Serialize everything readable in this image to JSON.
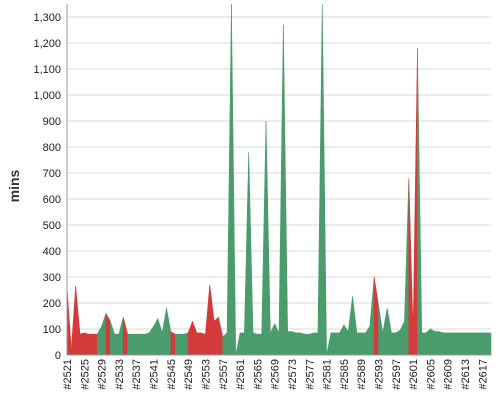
{
  "chart_data": {
    "type": "area",
    "title": "",
    "xlabel": "",
    "ylabel": "mins",
    "ylim": [
      0,
      1350
    ],
    "y_ticks": [
      0,
      100,
      200,
      300,
      400,
      500,
      600,
      700,
      800,
      900,
      1000,
      1100,
      1200,
      1300
    ],
    "y_tick_labels": [
      "0",
      "100",
      "200",
      "300",
      "400",
      "500",
      "600",
      "700",
      "800",
      "900",
      "1,000",
      "1,100",
      "1,200",
      "1,300"
    ],
    "x_tick_labels": [
      "#2521",
      "#2525",
      "#2529",
      "#2533",
      "#2537",
      "#2541",
      "#2545",
      "#2549",
      "#2553",
      "#2557",
      "#2561",
      "#2565",
      "#2569",
      "#2573",
      "#2577",
      "#2581",
      "#2585",
      "#2589",
      "#2593",
      "#2597",
      "#2601",
      "#2605",
      "#2609",
      "#2613",
      "#2617"
    ],
    "grid": true,
    "legend": "none",
    "colors": {
      "pass": "#4a9c6d",
      "fail": "#d43a3a"
    },
    "builds": [
      {
        "build": 2521,
        "value": 260,
        "status": "fail"
      },
      {
        "build": 2522,
        "value": 20,
        "status": "fail"
      },
      {
        "build": 2523,
        "value": 265,
        "status": "fail"
      },
      {
        "build": 2524,
        "value": 80,
        "status": "fail"
      },
      {
        "build": 2525,
        "value": 85,
        "status": "fail"
      },
      {
        "build": 2526,
        "value": 80,
        "status": "fail"
      },
      {
        "build": 2527,
        "value": 80,
        "status": "fail"
      },
      {
        "build": 2528,
        "value": 80,
        "status": "pass"
      },
      {
        "build": 2529,
        "value": 110,
        "status": "pass"
      },
      {
        "build": 2530,
        "value": 160,
        "status": "fail"
      },
      {
        "build": 2531,
        "value": 130,
        "status": "pass"
      },
      {
        "build": 2532,
        "value": 80,
        "status": "pass"
      },
      {
        "build": 2533,
        "value": 80,
        "status": "pass"
      },
      {
        "build": 2534,
        "value": 145,
        "status": "fail"
      },
      {
        "build": 2535,
        "value": 80,
        "status": "pass"
      },
      {
        "build": 2536,
        "value": 80,
        "status": "pass"
      },
      {
        "build": 2537,
        "value": 80,
        "status": "pass"
      },
      {
        "build": 2538,
        "value": 80,
        "status": "pass"
      },
      {
        "build": 2539,
        "value": 80,
        "status": "pass"
      },
      {
        "build": 2540,
        "value": 85,
        "status": "pass"
      },
      {
        "build": 2541,
        "value": 110,
        "status": "pass"
      },
      {
        "build": 2542,
        "value": 140,
        "status": "pass"
      },
      {
        "build": 2543,
        "value": 85,
        "status": "pass"
      },
      {
        "build": 2544,
        "value": 180,
        "status": "pass"
      },
      {
        "build": 2545,
        "value": 90,
        "status": "fail"
      },
      {
        "build": 2546,
        "value": 80,
        "status": "pass"
      },
      {
        "build": 2547,
        "value": 80,
        "status": "pass"
      },
      {
        "build": 2548,
        "value": 80,
        "status": "pass"
      },
      {
        "build": 2549,
        "value": 85,
        "status": "fail"
      },
      {
        "build": 2550,
        "value": 130,
        "status": "fail"
      },
      {
        "build": 2551,
        "value": 85,
        "status": "fail"
      },
      {
        "build": 2552,
        "value": 85,
        "status": "fail"
      },
      {
        "build": 2553,
        "value": 80,
        "status": "fail"
      },
      {
        "build": 2554,
        "value": 270,
        "status": "fail"
      },
      {
        "build": 2555,
        "value": 130,
        "status": "fail"
      },
      {
        "build": 2556,
        "value": 145,
        "status": "fail"
      },
      {
        "build": 2557,
        "value": 70,
        "status": "pass"
      },
      {
        "build": 2558,
        "value": 85,
        "status": "pass"
      },
      {
        "build": 2559,
        "value": 1350,
        "status": "pass"
      },
      {
        "build": 2560,
        "value": 0,
        "status": "pass"
      },
      {
        "build": 2561,
        "value": 85,
        "status": "pass"
      },
      {
        "build": 2562,
        "value": 85,
        "status": "pass"
      },
      {
        "build": 2563,
        "value": 780,
        "status": "pass"
      },
      {
        "build": 2564,
        "value": 85,
        "status": "pass"
      },
      {
        "build": 2565,
        "value": 80,
        "status": "pass"
      },
      {
        "build": 2566,
        "value": 80,
        "status": "pass"
      },
      {
        "build": 2567,
        "value": 900,
        "status": "pass"
      },
      {
        "build": 2568,
        "value": 85,
        "status": "pass"
      },
      {
        "build": 2569,
        "value": 120,
        "status": "pass"
      },
      {
        "build": 2570,
        "value": 85,
        "status": "pass"
      },
      {
        "build": 2571,
        "value": 1270,
        "status": "pass"
      },
      {
        "build": 2572,
        "value": 90,
        "status": "pass"
      },
      {
        "build": 2573,
        "value": 90,
        "status": "pass"
      },
      {
        "build": 2574,
        "value": 85,
        "status": "pass"
      },
      {
        "build": 2575,
        "value": 85,
        "status": "pass"
      },
      {
        "build": 2576,
        "value": 80,
        "status": "pass"
      },
      {
        "build": 2577,
        "value": 80,
        "status": "pass"
      },
      {
        "build": 2578,
        "value": 85,
        "status": "pass"
      },
      {
        "build": 2579,
        "value": 85,
        "status": "pass"
      },
      {
        "build": 2580,
        "value": 1350,
        "status": "pass"
      },
      {
        "build": 2581,
        "value": 0,
        "status": "pass"
      },
      {
        "build": 2582,
        "value": 85,
        "status": "pass"
      },
      {
        "build": 2583,
        "value": 85,
        "status": "pass"
      },
      {
        "build": 2584,
        "value": 85,
        "status": "pass"
      },
      {
        "build": 2585,
        "value": 115,
        "status": "pass"
      },
      {
        "build": 2586,
        "value": 90,
        "status": "pass"
      },
      {
        "build": 2587,
        "value": 225,
        "status": "pass"
      },
      {
        "build": 2588,
        "value": 85,
        "status": "pass"
      },
      {
        "build": 2589,
        "value": 85,
        "status": "pass"
      },
      {
        "build": 2590,
        "value": 85,
        "status": "pass"
      },
      {
        "build": 2591,
        "value": 110,
        "status": "pass"
      },
      {
        "build": 2592,
        "value": 300,
        "status": "fail"
      },
      {
        "build": 2593,
        "value": 190,
        "status": "pass"
      },
      {
        "build": 2594,
        "value": 85,
        "status": "pass"
      },
      {
        "build": 2595,
        "value": 180,
        "status": "pass"
      },
      {
        "build": 2596,
        "value": 85,
        "status": "pass"
      },
      {
        "build": 2597,
        "value": 85,
        "status": "pass"
      },
      {
        "build": 2598,
        "value": 95,
        "status": "pass"
      },
      {
        "build": 2599,
        "value": 130,
        "status": "pass"
      },
      {
        "build": 2600,
        "value": 680,
        "status": "fail"
      },
      {
        "build": 2601,
        "value": 90,
        "status": "fail"
      },
      {
        "build": 2602,
        "value": 1180,
        "status": "pass"
      },
      {
        "build": 2603,
        "value": 85,
        "status": "pass"
      },
      {
        "build": 2604,
        "value": 85,
        "status": "pass"
      },
      {
        "build": 2605,
        "value": 100,
        "status": "pass"
      },
      {
        "build": 2606,
        "value": 90,
        "status": "pass"
      },
      {
        "build": 2607,
        "value": 90,
        "status": "pass"
      },
      {
        "build": 2608,
        "value": 85,
        "status": "pass"
      },
      {
        "build": 2609,
        "value": 85,
        "status": "pass"
      },
      {
        "build": 2610,
        "value": 85,
        "status": "pass"
      },
      {
        "build": 2611,
        "value": 85,
        "status": "pass"
      },
      {
        "build": 2612,
        "value": 85,
        "status": "pass"
      },
      {
        "build": 2613,
        "value": 85,
        "status": "pass"
      },
      {
        "build": 2614,
        "value": 85,
        "status": "pass"
      },
      {
        "build": 2615,
        "value": 85,
        "status": "pass"
      },
      {
        "build": 2616,
        "value": 85,
        "status": "pass"
      },
      {
        "build": 2617,
        "value": 85,
        "status": "pass"
      },
      {
        "build": 2618,
        "value": 85,
        "status": "pass"
      },
      {
        "build": 2619,
        "value": 85,
        "status": "pass"
      }
    ]
  }
}
